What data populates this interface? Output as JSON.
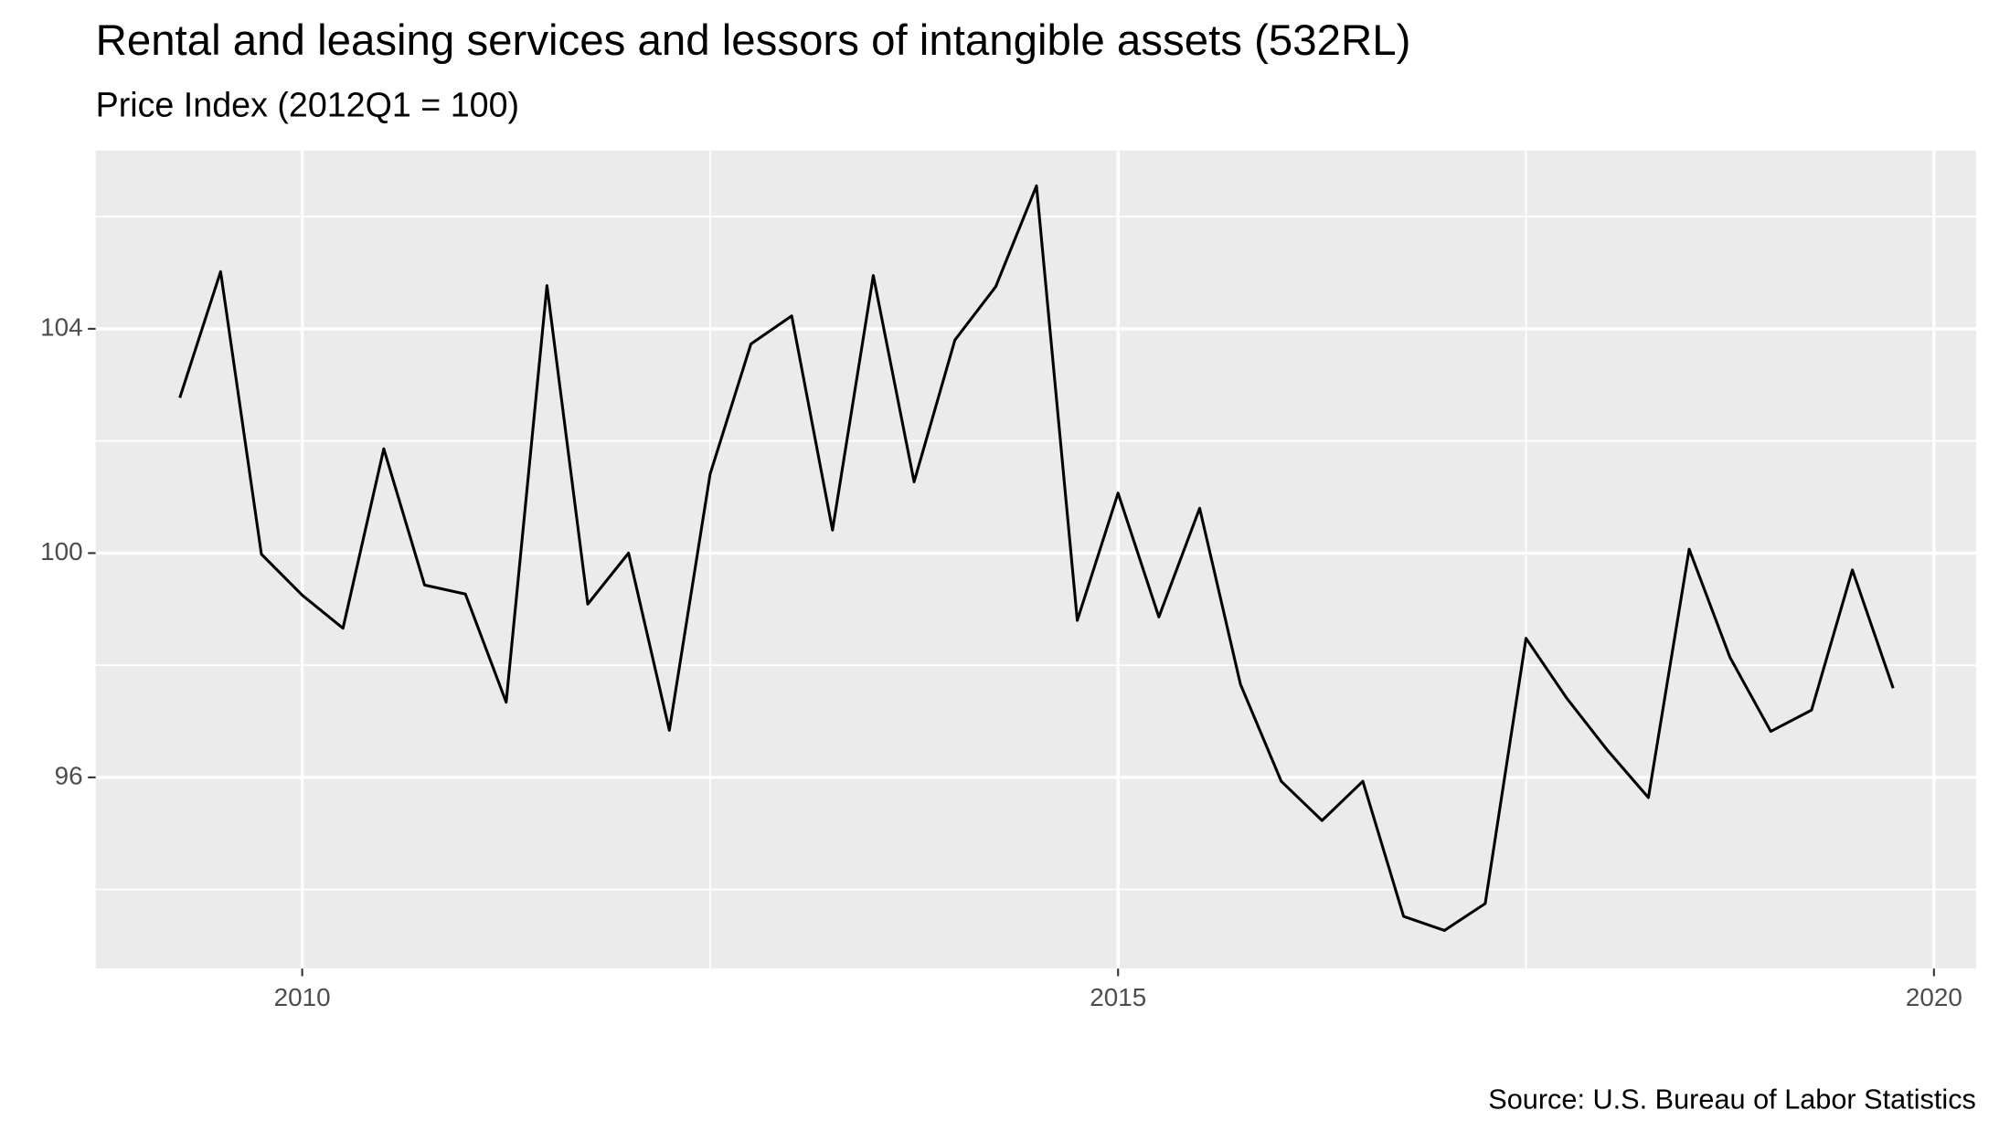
{
  "chart_data": {
    "type": "line",
    "title": "Rental and leasing services and lessors of intangible assets (532RL)",
    "subtitle": "Price Index (2012Q1 = 100)",
    "caption": "Source: U.S. Bureau of Labor Statistics",
    "x": [
      2009.25,
      2009.5,
      2009.75,
      2010.0,
      2010.25,
      2010.5,
      2010.75,
      2011.0,
      2011.25,
      2011.5,
      2011.75,
      2012.0,
      2012.25,
      2012.5,
      2012.75,
      2013.0,
      2013.25,
      2013.5,
      2013.75,
      2014.0,
      2014.25,
      2014.5,
      2014.75,
      2015.0,
      2015.25,
      2015.5,
      2015.75,
      2016.0,
      2016.25,
      2016.5,
      2016.75,
      2017.0,
      2017.25,
      2017.5,
      2017.75,
      2018.0,
      2018.25,
      2018.5,
      2018.75,
      2019.0,
      2019.25,
      2019.5,
      2019.75
    ],
    "series": [
      {
        "name": "532RL",
        "color": "#000000",
        "values": [
          102.77,
          105.02,
          99.98,
          99.25,
          98.66,
          101.86,
          99.43,
          99.27,
          97.34,
          104.77,
          99.09,
          100.0,
          96.84,
          101.41,
          103.73,
          104.23,
          100.41,
          104.95,
          101.27,
          103.8,
          104.75,
          106.55,
          98.8,
          101.07,
          98.86,
          100.8,
          97.66,
          95.93,
          95.23,
          95.93,
          93.52,
          93.27,
          93.75,
          98.48,
          97.41,
          96.48,
          95.64,
          100.07,
          98.14,
          96.82,
          97.2,
          99.7,
          97.59
        ]
      }
    ],
    "xlim": [
      2008.734,
      2020.258
    ],
    "ylim": [
      92.59,
      107.18
    ],
    "xticks": [
      2010,
      2015,
      2020
    ],
    "yticks": [
      96,
      100,
      104
    ],
    "minor_xticks": [
      2012.5,
      2017.5
    ],
    "minor_yticks": [
      94,
      98,
      102,
      106
    ],
    "grid": true,
    "panel_color": "#ebebeb"
  }
}
